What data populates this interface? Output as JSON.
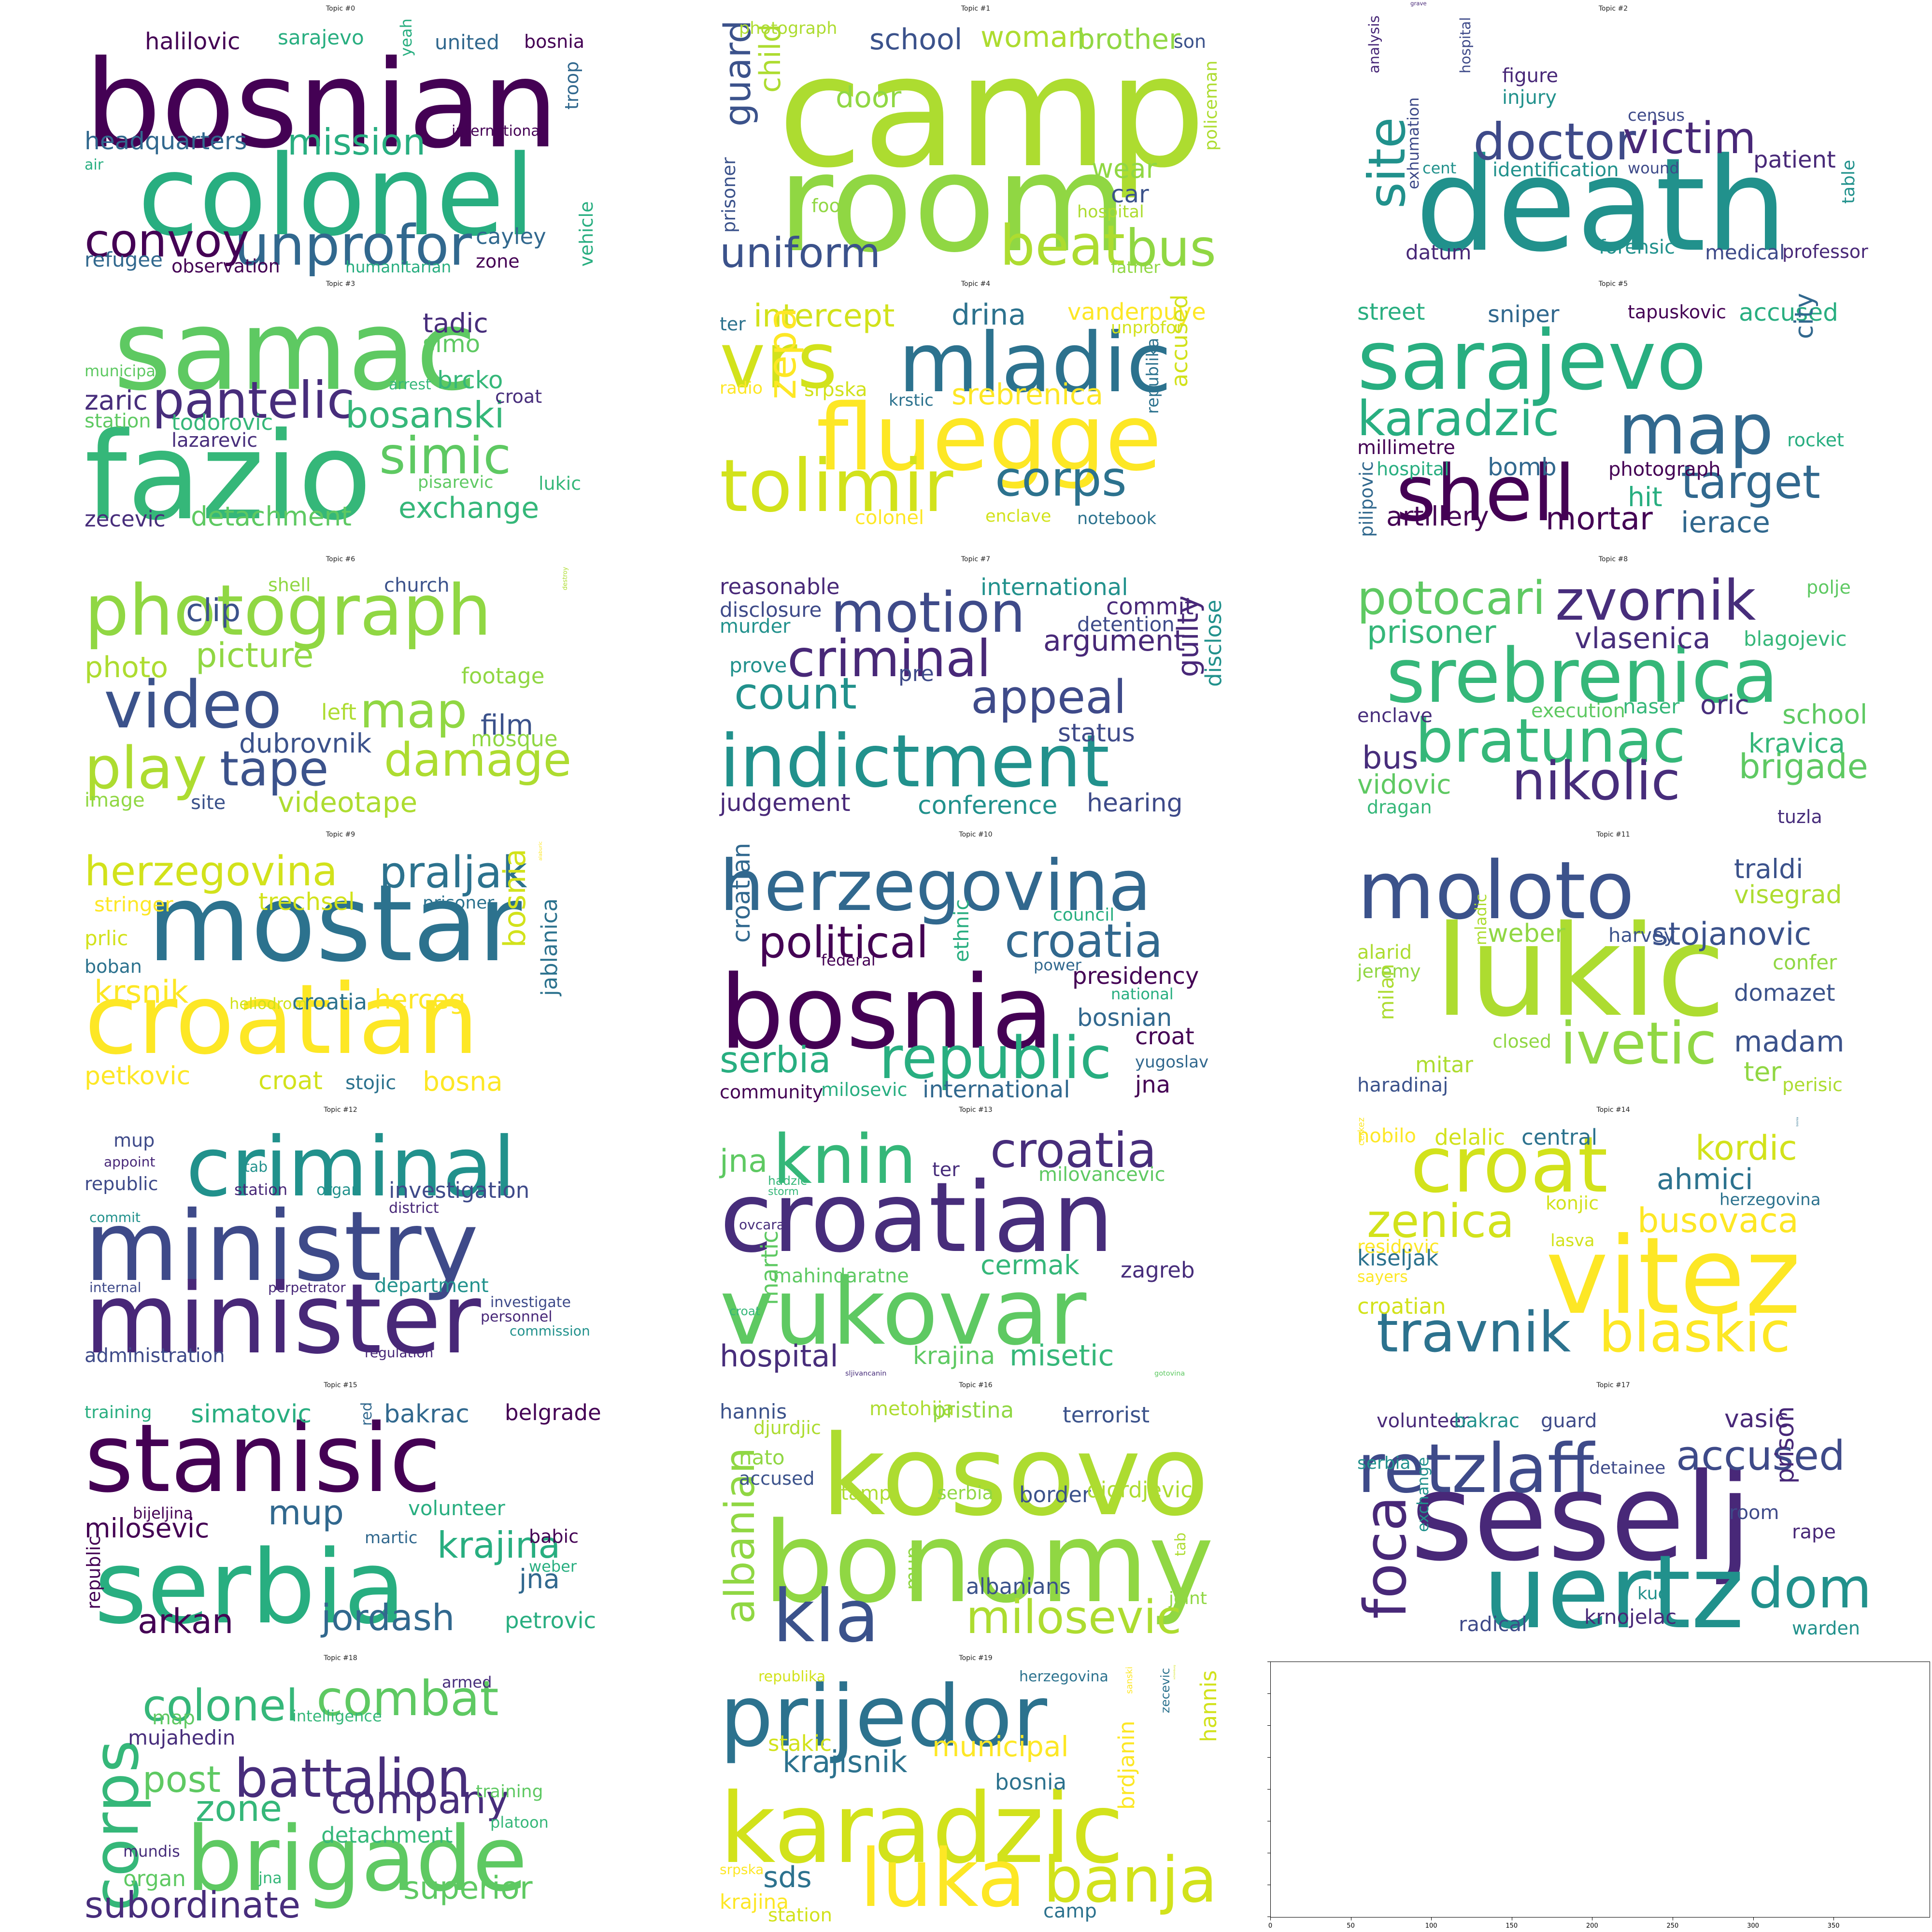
{
  "chart_data": {
    "type": "wordcloud",
    "panels": [
      {
        "title": "Topic #0",
        "words": [
          "bosnian",
          "colonel",
          "unprofor",
          "convoy",
          "mission",
          "headquarters",
          "halilovic",
          "sarajevo",
          "united",
          "bosnia",
          "yeah",
          "troop",
          "international",
          "air",
          "cayley",
          "zone",
          "vehicle",
          "refugee",
          "observation",
          "humanitarian"
        ]
      },
      {
        "title": "Topic #1",
        "words": [
          "camp",
          "room",
          "uniform",
          "beat",
          "bus",
          "guard",
          "child",
          "door",
          "school",
          "woman",
          "brother",
          "son",
          "photograph",
          "wear",
          "car",
          "hospital",
          "food",
          "prisoner",
          "policeman",
          "father"
        ]
      },
      {
        "title": "Topic #2",
        "words": [
          "grave",
          "death",
          "doctor",
          "victim",
          "site",
          "hospital",
          "figure",
          "injury",
          "census",
          "analysis",
          "identification",
          "wound",
          "patient",
          "cent",
          "exhumation",
          "datum",
          "forensic",
          "medical",
          "professor",
          "table"
        ]
      },
      {
        "title": "Topic #3",
        "words": [
          "samac",
          "fazio",
          "pantelic",
          "simic",
          "bosanski",
          "tadic",
          "simo",
          "brcko",
          "zaric",
          "station",
          "todorovic",
          "lazarevic",
          "municipal",
          "arrest",
          "croat",
          "pisarevic",
          "lukic",
          "zecevic",
          "detachment",
          "exchange"
        ]
      },
      {
        "title": "Topic #4",
        "words": [
          "vrs",
          "mladic",
          "fluegge",
          "tolimir",
          "corps",
          "srebrenica",
          "intercept",
          "drina",
          "vanderpuye",
          "unprofor",
          "ter",
          "radio",
          "srpska",
          "krstic",
          "zepa",
          "accused",
          "republika",
          "colonel",
          "enclave",
          "notebook"
        ]
      },
      {
        "title": "Topic #5",
        "words": [
          "sarajevo",
          "map",
          "shell",
          "karadzic",
          "target",
          "mortar",
          "street",
          "sniper",
          "tapuskovic",
          "accused",
          "city",
          "millimetre",
          "hospital",
          "bomb",
          "photograph",
          "rocket",
          "pilipovic",
          "artillery",
          "hit",
          "ierace"
        ]
      },
      {
        "title": "Topic #6",
        "words": [
          "photograph",
          "video",
          "play",
          "map",
          "tape",
          "damage",
          "picture",
          "clip",
          "photo",
          "shell",
          "church",
          "destroy",
          "footage",
          "film",
          "left",
          "mosque",
          "dubrovnik",
          "videotape",
          "image",
          "site"
        ]
      },
      {
        "title": "Topic #7",
        "words": [
          "indictment",
          "motion",
          "criminal",
          "count",
          "appeal",
          "reasonable",
          "international",
          "disclosure",
          "commit",
          "murder",
          "detention",
          "argument",
          "prove",
          "pre",
          "guilty",
          "disclose",
          "status",
          "judgement",
          "conference",
          "hearing"
        ]
      },
      {
        "title": "Topic #8",
        "words": [
          "srebrenica",
          "zvornik",
          "potocari",
          "bratunac",
          "nikolic",
          "brigade",
          "prisoner",
          "vlasenica",
          "polje",
          "blagojevic",
          "enclave",
          "execution",
          "naser",
          "oric",
          "school",
          "kravica",
          "bus",
          "vidovic",
          "dragan",
          "tuzla"
        ]
      },
      {
        "title": "Topic #9",
        "words": [
          "mostar",
          "croatian",
          "herzegovina",
          "praljak",
          "stringer",
          "trechsel",
          "prisoner",
          "alaburic",
          "prlic",
          "boban",
          "krsnik",
          "heliodrom",
          "croatia",
          "herceg",
          "bosnia",
          "jablanica",
          "petkovic",
          "croat",
          "stojic",
          "bosna"
        ]
      },
      {
        "title": "Topic #10",
        "words": [
          "herzegovina",
          "bosnia",
          "republic",
          "croatia",
          "political",
          "council",
          "croatian",
          "federal",
          "ethnic",
          "power",
          "presidency",
          "national",
          "bosnian",
          "croat",
          "serbia",
          "yugoslav",
          "community",
          "milosevic",
          "international",
          "jna"
        ]
      },
      {
        "title": "Topic #11",
        "words": [
          "moloto",
          "lukic",
          "ivetic",
          "traldi",
          "visegrad",
          "weber",
          "harvey",
          "alarid",
          "jeremy",
          "stojanovic",
          "mladic",
          "confer",
          "domazet",
          "milan",
          "closed",
          "madam",
          "mitar",
          "ter",
          "haradinaj",
          "perisic"
        ]
      },
      {
        "title": "Topic #12",
        "words": [
          "ministry",
          "minister",
          "criminal",
          "mup",
          "appoint",
          "tab",
          "republic",
          "station",
          "organ",
          "investigation",
          "district",
          "commit",
          "internal",
          "perpetrator",
          "department",
          "investigate",
          "personnel",
          "commission",
          "administration",
          "regulation"
        ]
      },
      {
        "title": "Topic #13",
        "words": [
          "croatian",
          "vukovar",
          "knin",
          "croatia",
          "jna",
          "hadzic",
          "ter",
          "milovancevic",
          "storm",
          "ovcara",
          "mahindaratne",
          "cermak",
          "zagreb",
          "martic",
          "croat",
          "hospital",
          "krajina",
          "misetic",
          "sljivancanin",
          "gotovina"
        ]
      },
      {
        "title": "Topic #14",
        "words": [
          "vitez",
          "croat",
          "travnik",
          "blaskic",
          "zenica",
          "bosnia",
          "busovaca",
          "kordic",
          "ahmici",
          "nobilo",
          "delalic",
          "central",
          "cerkez",
          "konjic",
          "herzegovina",
          "residovic",
          "lasva",
          "kiseljak",
          "sayers",
          "croatian"
        ]
      },
      {
        "title": "Topic #15",
        "words": [
          "stanisic",
          "serbia",
          "jordash",
          "arkan",
          "krajina",
          "mup",
          "milosevic",
          "simatovic",
          "bakrac",
          "belgrade",
          "training",
          "red",
          "bijeljina",
          "volunteer",
          "martic",
          "babic",
          "weber",
          "jna",
          "republic",
          "petrovic"
        ]
      },
      {
        "title": "Topic #16",
        "words": [
          "kosovo",
          "bonomy",
          "kla",
          "milosevic",
          "albanian",
          "hannis",
          "metohija",
          "pristina",
          "terrorist",
          "djurdjic",
          "nato",
          "accused",
          "stamp",
          "serbia",
          "border",
          "djordjevic",
          "mup",
          "albanians",
          "tab",
          "joint"
        ]
      },
      {
        "title": "Topic #17",
        "words": [
          "seselj",
          "uertz",
          "retzlaff",
          "foca",
          "dom",
          "accused",
          "volunteer",
          "bakrac",
          "guard",
          "vasic",
          "serbia",
          "detainee",
          "prison",
          "exchange",
          "room",
          "rape",
          "kuo",
          "radical",
          "krnojelac",
          "warden"
        ]
      },
      {
        "title": "Topic #18",
        "words": [
          "brigade",
          "corps",
          "battalion",
          "combat",
          "colonel",
          "company",
          "post",
          "zone",
          "subordinate",
          "superior",
          "detachment",
          "armed",
          "map",
          "intelligence",
          "mujahedin",
          "training",
          "platoon",
          "mundis",
          "organ",
          "jna"
        ]
      },
      {
        "title": "Topic #19",
        "words": [
          "karadzic",
          "prijedor",
          "luka",
          "banja",
          "krajisnik",
          "municipal",
          "stakic",
          "bosnia",
          "sanski",
          "schomburg",
          "zecevic",
          "brdjanin",
          "hannis",
          "sds",
          "krajina",
          "republika",
          "herzegovina",
          "srpska",
          "station",
          "camp"
        ]
      }
    ],
    "empty_axes": {
      "xticks": [
        "0",
        "50",
        "100",
        "150",
        "200",
        "250",
        "300",
        "350"
      ]
    }
  }
}
